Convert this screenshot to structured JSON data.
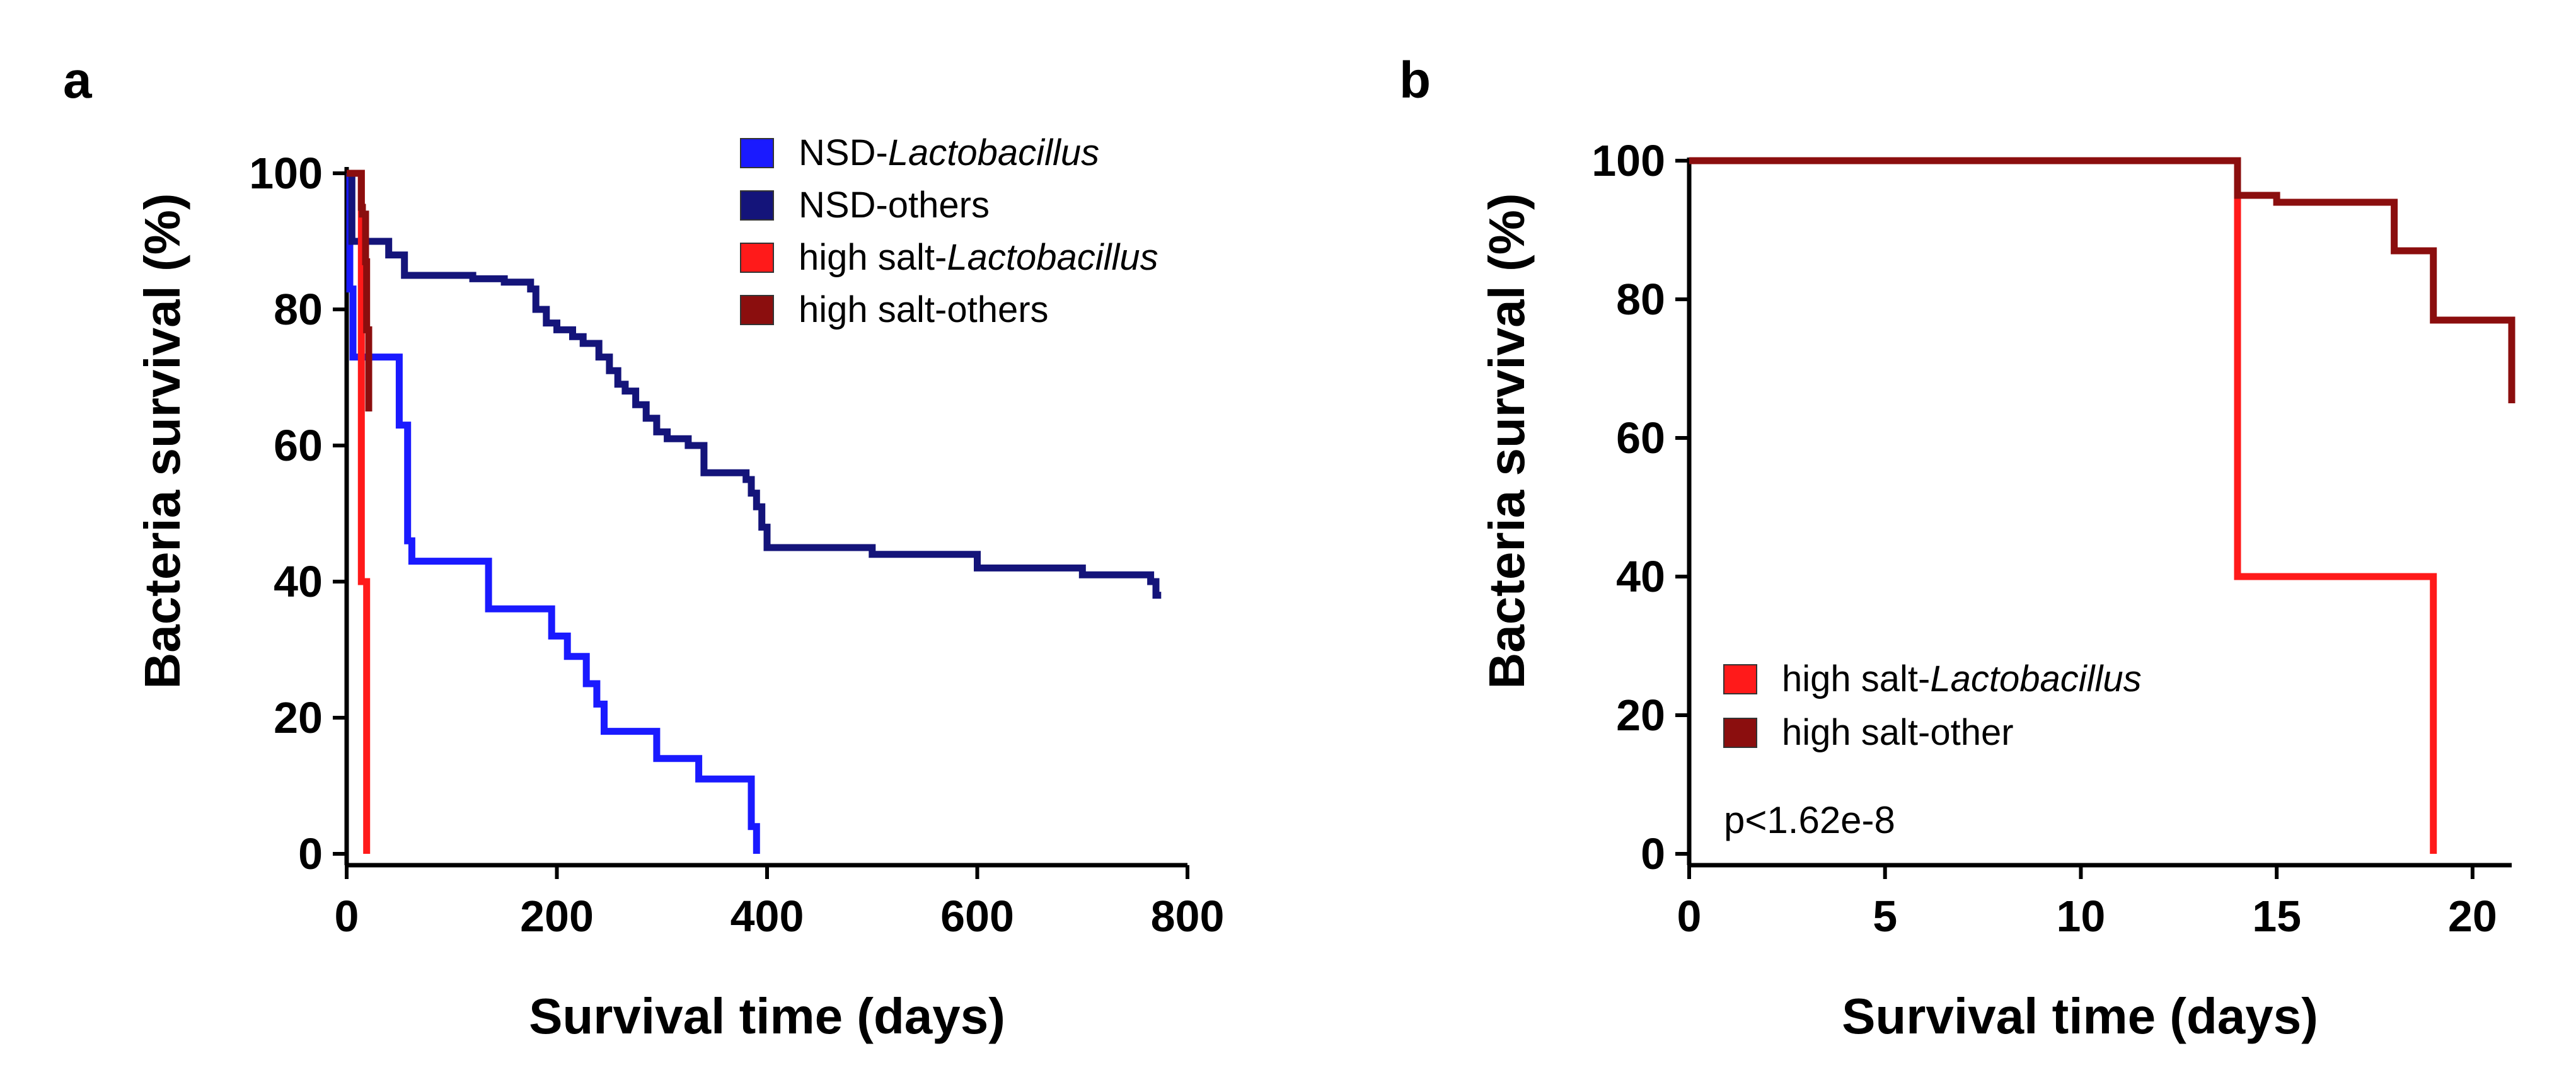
{
  "chart_data": [
    {
      "panel": "a",
      "type": "line",
      "title": "",
      "xlabel": "Survival time (days)",
      "ylabel": "Bacteria survival (%)",
      "xlim": [
        0,
        800
      ],
      "ylim": [
        0,
        100
      ],
      "xticks": [
        "0",
        "200",
        "400",
        "600",
        "800"
      ],
      "yticks": [
        "0",
        "20",
        "40",
        "60",
        "80",
        "100"
      ],
      "legend_position": "top-right",
      "series": [
        {
          "name_prefix": "NSD-",
          "name_italic": "Lactobacillus",
          "color": "#1a1aff",
          "points": [
            [
              0,
              100
            ],
            [
              3,
              100
            ],
            [
              3,
              83
            ],
            [
              6,
              83
            ],
            [
              6,
              73
            ],
            [
              50,
              73
            ],
            [
              50,
              63
            ],
            [
              58,
              63
            ],
            [
              58,
              46
            ],
            [
              62,
              46
            ],
            [
              62,
              43
            ],
            [
              135,
              43
            ],
            [
              135,
              36
            ],
            [
              195,
              36
            ],
            [
              195,
              32
            ],
            [
              210,
              32
            ],
            [
              210,
              29
            ],
            [
              228,
              29
            ],
            [
              228,
              25
            ],
            [
              238,
              25
            ],
            [
              238,
              22
            ],
            [
              245,
              22
            ],
            [
              245,
              18
            ],
            [
              295,
              18
            ],
            [
              295,
              14
            ],
            [
              335,
              14
            ],
            [
              335,
              11
            ],
            [
              385,
              11
            ],
            [
              385,
              4
            ],
            [
              390,
              4
            ],
            [
              390,
              0
            ]
          ]
        },
        {
          "name_prefix": "NSD-others",
          "name_italic": "",
          "color": "#14147a",
          "points": [
            [
              0,
              100
            ],
            [
              5,
              100
            ],
            [
              5,
              90
            ],
            [
              40,
              90
            ],
            [
              40,
              88
            ],
            [
              55,
              88
            ],
            [
              55,
              85
            ],
            [
              120,
              85
            ],
            [
              120,
              84.5
            ],
            [
              150,
              84.5
            ],
            [
              150,
              84
            ],
            [
              175,
              84
            ],
            [
              175,
              83
            ],
            [
              180,
              83
            ],
            [
              180,
              80
            ],
            [
              190,
              80
            ],
            [
              190,
              78
            ],
            [
              200,
              78
            ],
            [
              200,
              77
            ],
            [
              215,
              77
            ],
            [
              215,
              76
            ],
            [
              225,
              76
            ],
            [
              225,
              75
            ],
            [
              240,
              75
            ],
            [
              240,
              73
            ],
            [
              250,
              73
            ],
            [
              250,
              71
            ],
            [
              258,
              71
            ],
            [
              258,
              69
            ],
            [
              265,
              69
            ],
            [
              265,
              68
            ],
            [
              275,
              68
            ],
            [
              275,
              66
            ],
            [
              285,
              66
            ],
            [
              285,
              64
            ],
            [
              295,
              64
            ],
            [
              295,
              62
            ],
            [
              305,
              62
            ],
            [
              305,
              61
            ],
            [
              325,
              61
            ],
            [
              325,
              60
            ],
            [
              340,
              60
            ],
            [
              340,
              56
            ],
            [
              380,
              56
            ],
            [
              380,
              55
            ],
            [
              385,
              55
            ],
            [
              385,
              53
            ],
            [
              390,
              53
            ],
            [
              390,
              51
            ],
            [
              395,
              51
            ],
            [
              395,
              48
            ],
            [
              400,
              48
            ],
            [
              400,
              45
            ],
            [
              500,
              45
            ],
            [
              500,
              44
            ],
            [
              600,
              44
            ],
            [
              600,
              42
            ],
            [
              700,
              42
            ],
            [
              700,
              41
            ],
            [
              765,
              41
            ],
            [
              765,
              40
            ],
            [
              770,
              40
            ],
            [
              770,
              38
            ],
            [
              775,
              38
            ]
          ]
        },
        {
          "name_prefix": "high salt-",
          "name_italic": "Lactobacillus",
          "color": "#ff1a1a",
          "points": [
            [
              0,
              100
            ],
            [
              14,
              100
            ],
            [
              14,
              40
            ],
            [
              19,
              40
            ],
            [
              19,
              0
            ]
          ]
        },
        {
          "name_prefix": "high salt-others",
          "name_italic": "",
          "color": "#8b0e0e",
          "points": [
            [
              0,
              100
            ],
            [
              14,
              100
            ],
            [
              14,
              95
            ],
            [
              15,
              95
            ],
            [
              15,
              94
            ],
            [
              18,
              94
            ],
            [
              18,
              87
            ],
            [
              19,
              87
            ],
            [
              19,
              77
            ],
            [
              21,
              77
            ],
            [
              21,
              65
            ]
          ]
        }
      ]
    },
    {
      "panel": "b",
      "type": "line",
      "title": "",
      "xlabel": "Survival time (days)",
      "ylabel": "Bacteria survival (%)",
      "xlim": [
        0,
        21
      ],
      "ylim": [
        0,
        100
      ],
      "xticks": [
        "0",
        "5",
        "10",
        "15",
        "20"
      ],
      "yticks": [
        "0",
        "20",
        "40",
        "60",
        "80",
        "100"
      ],
      "legend_position": "bottom-left",
      "annotation": "p<1.62e-8",
      "series": [
        {
          "name_prefix": "high salt-",
          "name_italic": "Lactobacillus",
          "color": "#ff1a1a",
          "points": [
            [
              0,
              100
            ],
            [
              14,
              100
            ],
            [
              14,
              40
            ],
            [
              19,
              40
            ],
            [
              19,
              0
            ]
          ]
        },
        {
          "name_prefix": "high salt-other",
          "name_italic": "",
          "color": "#8b0e0e",
          "points": [
            [
              0,
              100
            ],
            [
              14,
              100
            ],
            [
              14,
              95
            ],
            [
              15,
              95
            ],
            [
              15,
              94
            ],
            [
              18,
              94
            ],
            [
              18,
              87
            ],
            [
              19,
              87
            ],
            [
              19,
              77
            ],
            [
              21,
              77
            ],
            [
              21,
              65
            ]
          ]
        }
      ]
    }
  ]
}
